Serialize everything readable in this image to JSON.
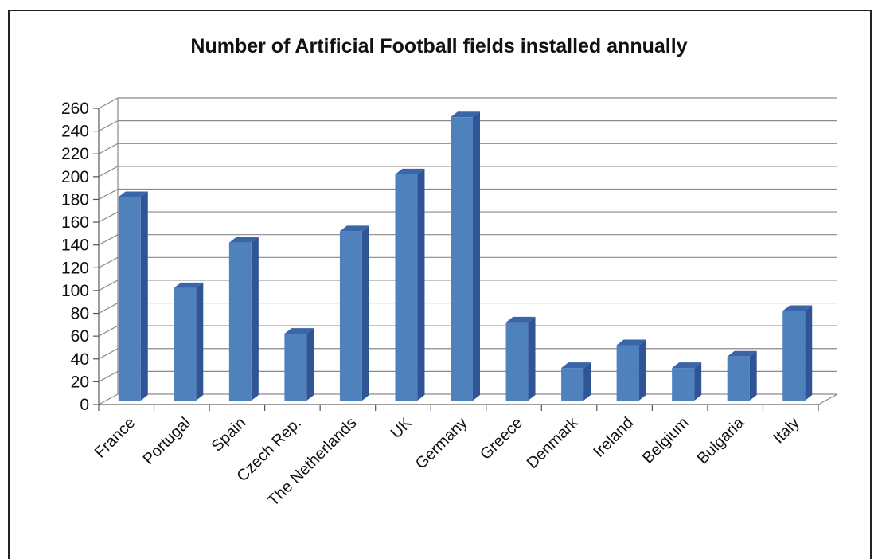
{
  "chart_data": {
    "type": "bar",
    "title": "Number of Artificial Football fields installed annually",
    "xlabel": "",
    "ylabel": "",
    "ylim": [
      0,
      260
    ],
    "ytick_step": 20,
    "yticks": [
      "0",
      "20",
      "40",
      "60",
      "80",
      "100",
      "120",
      "140",
      "160",
      "180",
      "200",
      "220",
      "240",
      "260"
    ],
    "grid": true,
    "legend": "none",
    "three_d": true,
    "bar_color": "#4f81bd",
    "bar_side_color": "#2f5597",
    "bar_top_color": "#3a65a8",
    "categories": [
      "France",
      "Portugal",
      "Spain",
      "Czech Rep.",
      "The Netherlands",
      "UK",
      "Germany",
      "Greece",
      "Denmark",
      "Ireland",
      "Belgium",
      "Bulgaria",
      "Italy"
    ],
    "values": [
      180,
      100,
      140,
      60,
      150,
      200,
      250,
      70,
      30,
      50,
      30,
      40,
      80
    ]
  }
}
